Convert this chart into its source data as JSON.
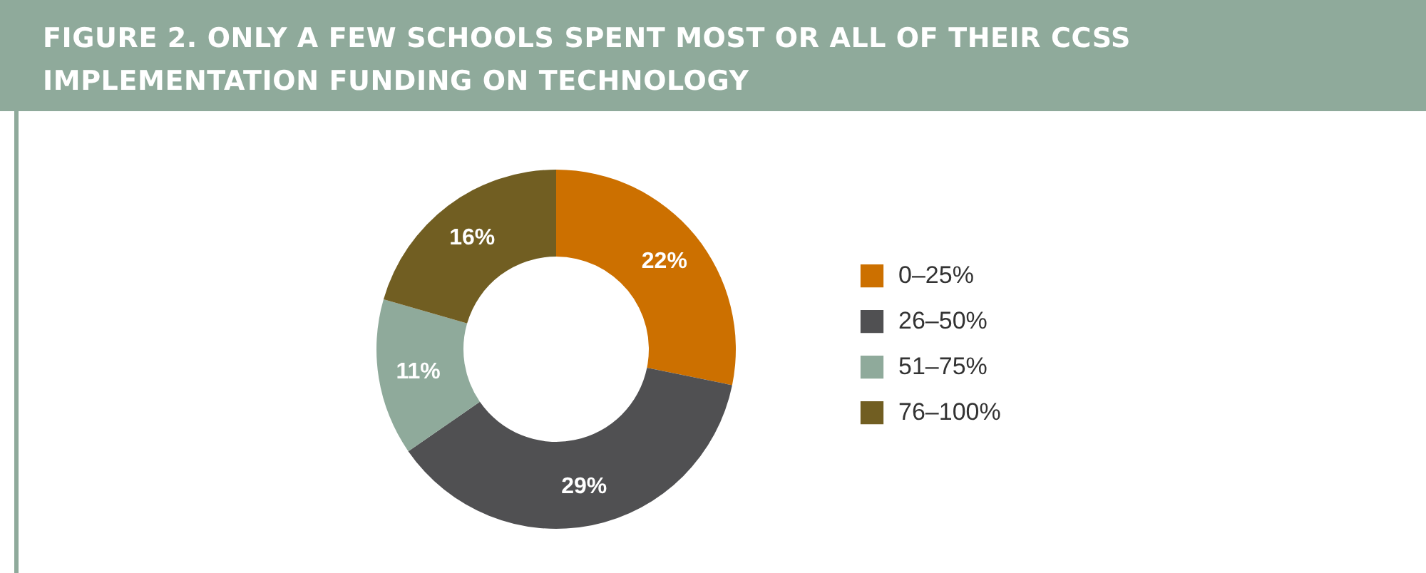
{
  "chart_data": {
    "type": "donut",
    "title": "FIGURE 2. ONLY A FEW SCHOOLS SPENT MOST OR ALL OF THEIR CCSS IMPLEMENTATION FUNDING ON TECHNOLOGY",
    "categories": [
      "0–25%",
      "26–50%",
      "51–75%",
      "76–100%"
    ],
    "values": [
      22,
      29,
      11,
      16
    ],
    "value_labels": [
      "22%",
      "29%",
      "11%",
      "16%"
    ],
    "colors": [
      "#cc7000",
      "#505052",
      "#8faa9b",
      "#715e22"
    ],
    "legend": "right"
  }
}
